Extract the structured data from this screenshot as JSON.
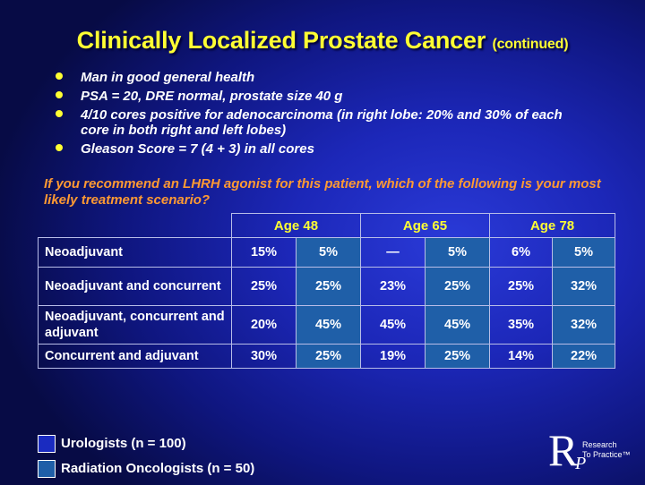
{
  "title": {
    "main": "Clinically Localized Prostate Cancer",
    "sub": "(continued)"
  },
  "bullets": [
    "Man in good general health",
    "PSA = 20, DRE normal, prostate size 40 g",
    "4/10 cores positive for adenocarcinoma (in right lobe: 20% and 30% of each core in both right and left lobes)",
    "Gleason Score = 7 (4 + 3) in all cores"
  ],
  "question": "If you recommend an LHRH agonist for this patient, which of the following is your most likely treatment scenario?",
  "table": {
    "age_headers": [
      "Age 48",
      "Age 65",
      "Age 78"
    ],
    "rows": [
      {
        "label": "Neoadjuvant",
        "values": [
          "15%",
          "5%",
          "—",
          "5%",
          "6%",
          "5%"
        ]
      },
      {
        "label": "Neoadjuvant and concurrent",
        "values": [
          "25%",
          "25%",
          "23%",
          "25%",
          "25%",
          "32%"
        ]
      },
      {
        "label": "Neoadjuvant, concurrent and adjuvant",
        "values": [
          "20%",
          "45%",
          "45%",
          "45%",
          "35%",
          "32%"
        ]
      },
      {
        "label": "Concurrent and adjuvant",
        "values": [
          "30%",
          "25%",
          "19%",
          "25%",
          "14%",
          "22%"
        ]
      }
    ]
  },
  "legend": {
    "urologists": "Urologists  (n = 100)",
    "radiation_oncologists": "Radiation Oncologists  (n = 50)"
  },
  "logo": {
    "letter_r": "R",
    "letter_p": "P",
    "line1": "Research",
    "line2": "To Practice™"
  },
  "colors": {
    "title": "#ffff33",
    "question": "#ff9a33",
    "urologists": "#1a2bc0",
    "radiation_oncologists": "#1f5fa8"
  }
}
